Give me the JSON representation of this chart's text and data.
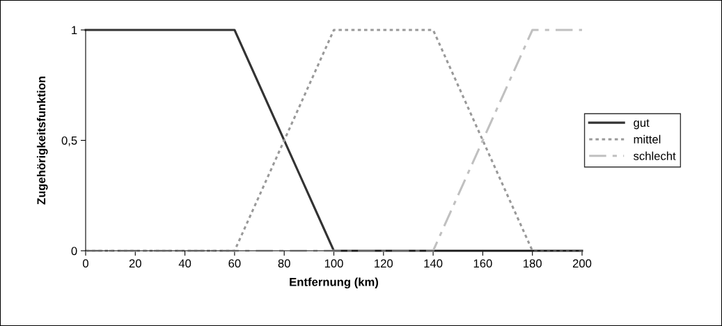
{
  "chart_data": {
    "type": "line",
    "xlabel": "Entfernung (km)",
    "ylabel": "Zugehörigkeitsfunktion",
    "x": [
      0,
      10,
      20,
      30,
      40,
      50,
      60,
      70,
      80,
      90,
      100,
      110,
      120,
      130,
      140,
      150,
      160,
      170,
      180,
      190,
      200
    ],
    "series": [
      {
        "name": "gut",
        "color": "#333333",
        "line_style": "solid",
        "values": [
          1,
          1,
          1,
          1,
          1,
          1,
          1,
          0.75,
          0.5,
          0.25,
          0,
          0,
          0,
          0,
          0,
          0,
          0,
          0,
          0,
          0,
          0
        ]
      },
      {
        "name": "mittel",
        "color": "#999999",
        "line_style": "dotted",
        "values": [
          0,
          0,
          0,
          0,
          0,
          0,
          0,
          0.25,
          0.5,
          0.75,
          1,
          1,
          1,
          1,
          1,
          0.75,
          0.5,
          0.25,
          0,
          0,
          0
        ]
      },
      {
        "name": "schlecht",
        "color": "#c0c0c0",
        "line_style": "dashdot",
        "values": [
          0,
          0,
          0,
          0,
          0,
          0,
          0,
          0,
          0,
          0,
          0,
          0,
          0,
          0,
          0,
          0.25,
          0.5,
          0.75,
          1,
          1,
          1
        ]
      }
    ],
    "xlim": [
      0,
      200
    ],
    "xticks": [
      0,
      20,
      40,
      60,
      80,
      100,
      120,
      140,
      160,
      180,
      200
    ],
    "ylim": [
      0,
      1
    ],
    "yticks": [
      0,
      {
        "value": 0.5,
        "label": "0,5"
      },
      1
    ],
    "grid": false,
    "legend": "right",
    "marker": "none"
  }
}
